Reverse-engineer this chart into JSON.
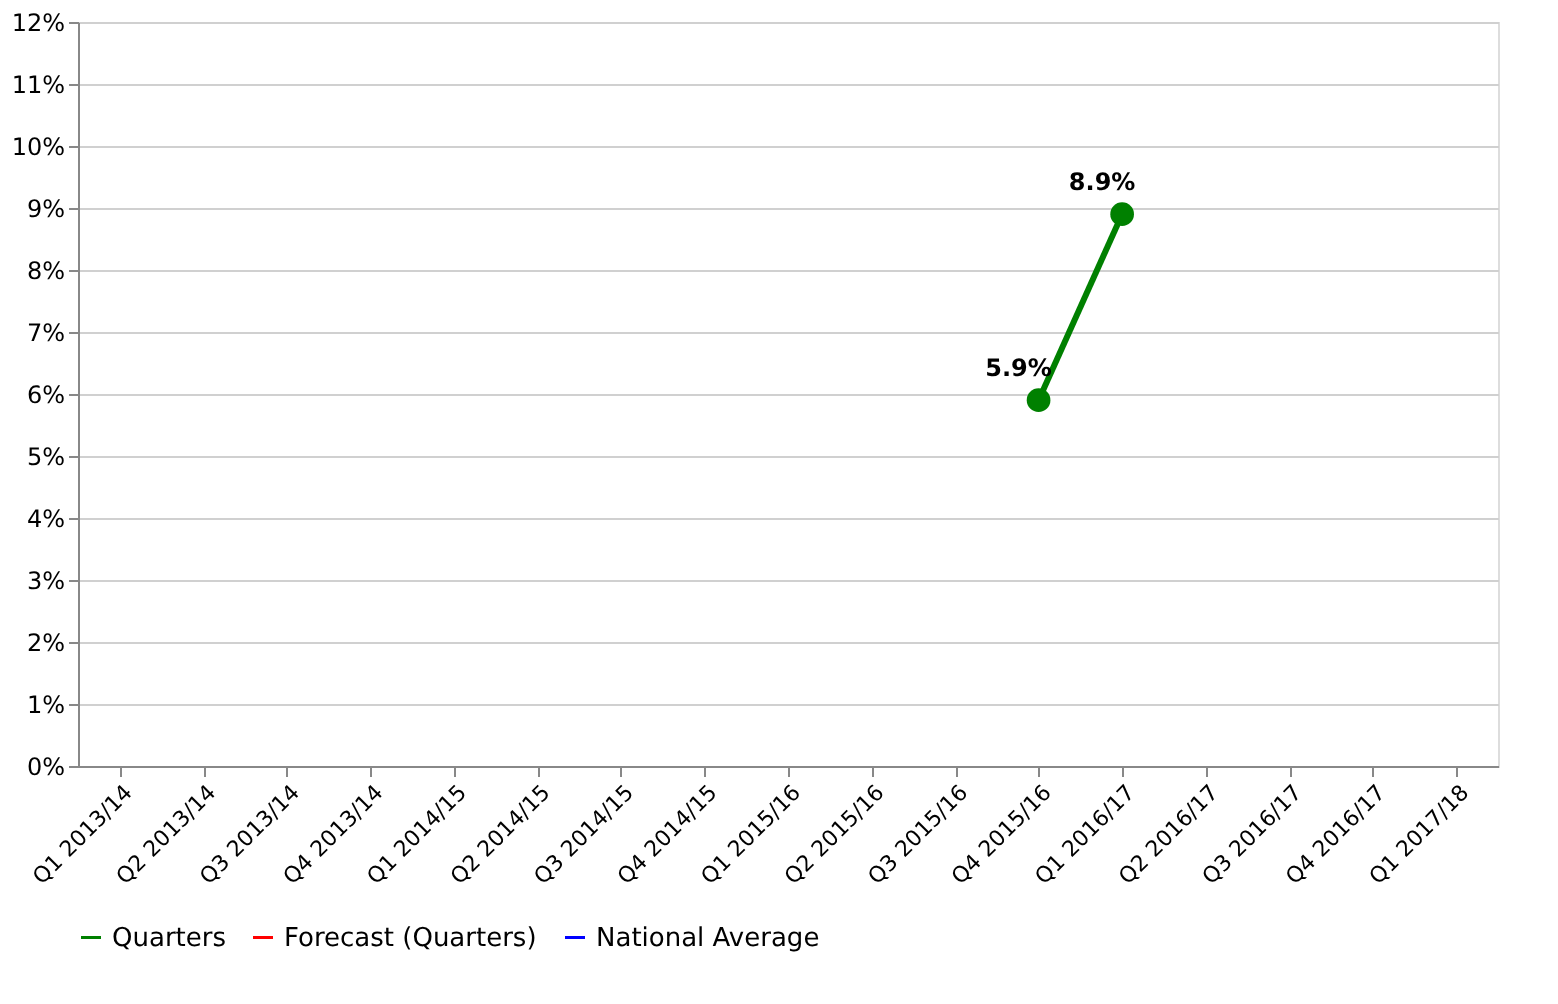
{
  "chart_data": {
    "type": "line",
    "categories": [
      "Q1 2013/14",
      "Q2 2013/14",
      "Q3 2013/14",
      "Q4 2013/14",
      "Q1 2014/15",
      "Q2 2014/15",
      "Q3 2014/15",
      "Q4 2014/15",
      "Q1 2015/16",
      "Q2 2015/16",
      "Q3 2015/16",
      "Q4 2015/16",
      "Q1 2016/17",
      "Q2 2016/17",
      "Q3 2016/17",
      "Q4 2016/17",
      "Q1 2017/18"
    ],
    "series": [
      {
        "name": "Quarters",
        "color": "#008000",
        "marker": "circle",
        "values": [
          null,
          null,
          null,
          null,
          null,
          null,
          null,
          null,
          null,
          null,
          null,
          5.9,
          8.9,
          null,
          null,
          null,
          null
        ],
        "value_labels": [
          null,
          null,
          null,
          null,
          null,
          null,
          null,
          null,
          null,
          null,
          null,
          "5.9%",
          "8.9%",
          null,
          null,
          null,
          null
        ]
      },
      {
        "name": "Forecast (Quarters)",
        "color": "#ff0000",
        "marker": "none",
        "values": [
          null,
          null,
          null,
          null,
          null,
          null,
          null,
          null,
          null,
          null,
          null,
          null,
          null,
          null,
          null,
          null,
          null
        ]
      },
      {
        "name": "National Average",
        "color": "#0000ff",
        "marker": "none",
        "values": [
          null,
          null,
          null,
          null,
          null,
          null,
          null,
          null,
          null,
          null,
          null,
          null,
          null,
          null,
          null,
          null,
          null
        ]
      }
    ],
    "ylim": [
      0,
      12
    ],
    "yticks": [
      {
        "value": 0,
        "label": "0%"
      },
      {
        "value": 1,
        "label": "1%"
      },
      {
        "value": 2,
        "label": "2%"
      },
      {
        "value": 3,
        "label": "3%"
      },
      {
        "value": 4,
        "label": "4%"
      },
      {
        "value": 5,
        "label": "5%"
      },
      {
        "value": 6,
        "label": "6%"
      },
      {
        "value": 7,
        "label": "7%"
      },
      {
        "value": 8,
        "label": "8%"
      },
      {
        "value": 9,
        "label": "9%"
      },
      {
        "value": 10,
        "label": "10%"
      },
      {
        "value": 11,
        "label": "11%"
      },
      {
        "value": 12,
        "label": "12%"
      }
    ],
    "grid": "y",
    "legend": "bottom",
    "line_style": "solid"
  }
}
